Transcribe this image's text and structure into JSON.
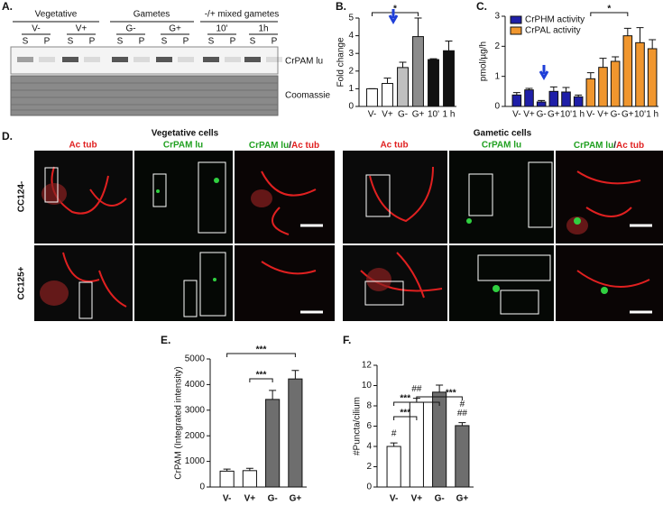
{
  "panel_a": {
    "label": "A.",
    "groups": [
      "Vegetative",
      "Gametes",
      "-/+ mixed gametes"
    ],
    "lanes": [
      "V-",
      "V+",
      "G-",
      "G+",
      "10'",
      "1h"
    ],
    "fractions": [
      "S",
      "P"
    ],
    "bands": [
      "CrPAM lu",
      "Coomassie"
    ]
  },
  "panel_d": {
    "label": "D.",
    "titles": [
      "Vegetative cells",
      "Gametic cells"
    ],
    "columns": [
      "Ac tub",
      "CrPAM lu"
    ],
    "separator": "/",
    "rows": [
      "CC124-",
      "CC125+"
    ]
  },
  "chart_data": [
    {
      "type": "bar",
      "label": "B.",
      "ylabel": "Fold change",
      "categories": [
        "V-",
        "V+",
        "G-",
        "G+",
        "10'",
        "1 h"
      ],
      "values": [
        1.0,
        1.3,
        2.2,
        3.95,
        2.65,
        3.15
      ],
      "errors": [
        0,
        0.3,
        0.3,
        1.05,
        0.05,
        0.55
      ],
      "colors": [
        "#ffffff",
        "#ffffff",
        "#bfbfbf",
        "#8c8c8c",
        "#111111",
        "#111111"
      ],
      "ylim": [
        0,
        5
      ],
      "yticks": [
        0,
        1,
        2,
        3,
        4,
        5
      ],
      "annotations": [
        "*"
      ]
    },
    {
      "type": "bar",
      "label": "C.",
      "ylabel": "pmol/µg/h",
      "categories": [
        "V-",
        "V+",
        "G-",
        "G+",
        "10'",
        "1 h"
      ],
      "series": [
        {
          "name": "CrPHM activity",
          "color": "#1f1fa8",
          "values": [
            0.38,
            0.55,
            0.15,
            0.5,
            0.48,
            0.32
          ],
          "errors": [
            0.08,
            0.05,
            0.05,
            0.15,
            0.15,
            0.06
          ]
        },
        {
          "name": "CrPAL activity",
          "color": "#f0962e",
          "values": [
            0.92,
            1.3,
            1.5,
            2.35,
            2.12,
            1.92
          ],
          "errors": [
            0.2,
            0.3,
            0.15,
            0.25,
            0.5,
            0.3
          ]
        }
      ],
      "ylim": [
        0,
        3
      ],
      "yticks": [
        0,
        1,
        2,
        3
      ],
      "annotations": [
        "*"
      ]
    },
    {
      "type": "bar",
      "label": "E.",
      "ylabel": "CrPAM (Integrated intensity)",
      "categories": [
        "V-",
        "V+",
        "G-",
        "G+"
      ],
      "values": [
        620,
        640,
        3420,
        4220
      ],
      "errors": [
        80,
        90,
        350,
        330
      ],
      "colors": [
        "#ffffff",
        "#ffffff",
        "#6e6e6e",
        "#6e6e6e"
      ],
      "ylim": [
        0,
        5000
      ],
      "yticks": [
        0,
        1000,
        2000,
        3000,
        4000,
        5000
      ],
      "annotations": [
        "***",
        "***"
      ]
    },
    {
      "type": "bar",
      "label": "F.",
      "ylabel": "#Puncta/cilium",
      "categories": [
        "V-",
        "V+",
        "G-",
        "G+"
      ],
      "values": [
        4.0,
        8.35,
        9.35,
        6.05
      ],
      "errors": [
        0.35,
        0.4,
        0.7,
        0.3
      ],
      "colors": [
        "#ffffff",
        "#ffffff",
        "#6e6e6e",
        "#6e6e6e"
      ],
      "ylim": [
        0,
        12
      ],
      "yticks": [
        0,
        2,
        4,
        6,
        8,
        10,
        12
      ],
      "annotations": [
        "***",
        "***",
        "***",
        "#",
        "##",
        "#",
        "##"
      ]
    }
  ]
}
